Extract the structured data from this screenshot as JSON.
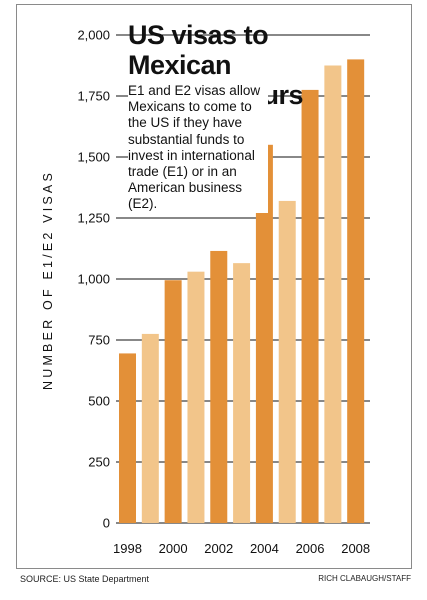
{
  "chart_data": {
    "type": "bar",
    "title": "US visas to Mexican entrepreneurs",
    "description": "E1 and E2 visas allow Mexicans to come to the US if they have substantial funds to invest in international trade (E1) or in an American business (E2).",
    "ylabel": "NUMBER OF E1/E2 VISAS",
    "xlabel": "",
    "ylim": [
      0,
      2000
    ],
    "yticks": [
      0,
      250,
      500,
      750,
      1000,
      1250,
      1500,
      1750,
      2000
    ],
    "ytick_labels": [
      "0",
      "250",
      "500",
      "750",
      "1,000",
      "1,250",
      "1,500",
      "1,750",
      "2,000"
    ],
    "categories": [
      "1998",
      "1999",
      "2000",
      "2001",
      "2002",
      "2003",
      "2004",
      "2005",
      "2006",
      "2007",
      "2008"
    ],
    "xtick_labels": [
      "1998",
      "2000",
      "2002",
      "2004",
      "2006",
      "2008"
    ],
    "values": [
      695,
      775,
      995,
      1030,
      1115,
      1065,
      1550,
      1320,
      1775,
      1875,
      1900
    ],
    "grid": "horizontal",
    "colors": {
      "dark": "#E39038",
      "light": "#F2C58A"
    }
  },
  "footer": {
    "source": "SOURCE: US State Department",
    "credit": "RICH CLABAUGH/STAFF"
  }
}
